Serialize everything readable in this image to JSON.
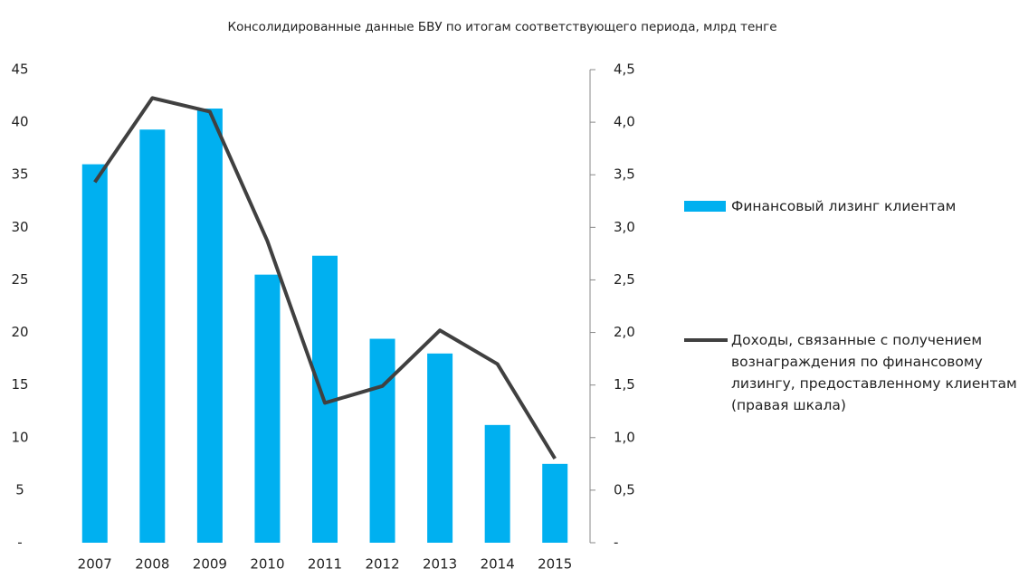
{
  "chart_data": {
    "type": "bar_line",
    "title": "Консолидированные данные  БВУ  по итогам соответствующего периода, млрд тенге",
    "categories": [
      "2007",
      "2008",
      "2009",
      "2010",
      "2011",
      "2012",
      "2013",
      "2014",
      "2015"
    ],
    "series": [
      {
        "name": "Финансовый лизинг клиентам",
        "type": "bar",
        "color": "#00b0f0",
        "axis": "y",
        "values": [
          36,
          39.3,
          41.3,
          25.5,
          27.3,
          19.4,
          18,
          11.2,
          7.5
        ]
      },
      {
        "name": "Доходы, связанные с получением вознаграждения по финансовому лизингу, предоставленному клиентам (правая шкала)",
        "type": "line",
        "color": "#404040",
        "axis": "y2",
        "values": [
          3.43,
          4.23,
          4.1,
          2.87,
          1.33,
          1.49,
          2.02,
          1.7,
          0.8
        ]
      }
    ],
    "ylim": [
      0,
      45
    ],
    "yticks": [
      {
        "value": 0,
        "label": "-"
      },
      5,
      10,
      15,
      20,
      25,
      30,
      35,
      40,
      45
    ],
    "y2lim": [
      0,
      4.5
    ],
    "y2ticks": [
      {
        "value": 0,
        "label": "-"
      },
      {
        "value": 0.5,
        "label": "0,5"
      },
      {
        "value": 1,
        "label": "1,0"
      },
      {
        "value": 1.5,
        "label": "1,5"
      },
      {
        "value": 2,
        "label": "2,0"
      },
      {
        "value": 2.5,
        "label": "2,5"
      },
      {
        "value": 3,
        "label": "3,0"
      },
      {
        "value": 3.5,
        "label": "3,5"
      },
      {
        "value": 4,
        "label": "4,0"
      },
      {
        "value": 4.5,
        "label": "4,5"
      }
    ],
    "grid": false,
    "legend": "right"
  }
}
